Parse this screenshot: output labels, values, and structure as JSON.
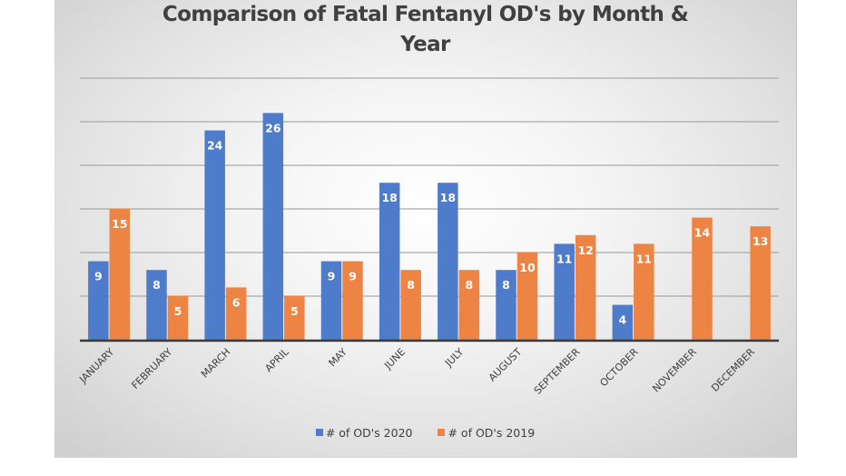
{
  "chart_data": {
    "type": "bar",
    "title": "Comparison of Fatal Fentanyl OD's by Month & Year",
    "title_lines": [
      "Comparison of Fatal Fentanyl OD's by Month &",
      "Year"
    ],
    "xlabel": "",
    "ylabel": "",
    "ylim": [
      0,
      30
    ],
    "gridlines": [
      5,
      10,
      15,
      20,
      25,
      30
    ],
    "grid": true,
    "y_tick_labels_shown": false,
    "legend_position": "bottom",
    "categories": [
      "JANUARY",
      "FEBRUARY",
      "MARCH",
      "APRIL",
      "MAY",
      "JUNE",
      "JULY",
      "AUGUST",
      "SEPTEMBER",
      "OCTOBER",
      "NOVEMBER",
      "DECEMBER"
    ],
    "series": [
      {
        "name": "# of OD's 2020",
        "color": "#4F7BCB",
        "values": [
          9,
          8,
          24,
          26,
          9,
          18,
          18,
          8,
          11,
          4,
          null,
          null
        ]
      },
      {
        "name": "# of OD's 2019",
        "color": "#EE8443",
        "values": [
          15,
          5,
          6,
          5,
          9,
          8,
          8,
          10,
          12,
          11,
          14,
          13
        ]
      }
    ],
    "data_labels": true,
    "data_label_color": "#ffffff"
  }
}
